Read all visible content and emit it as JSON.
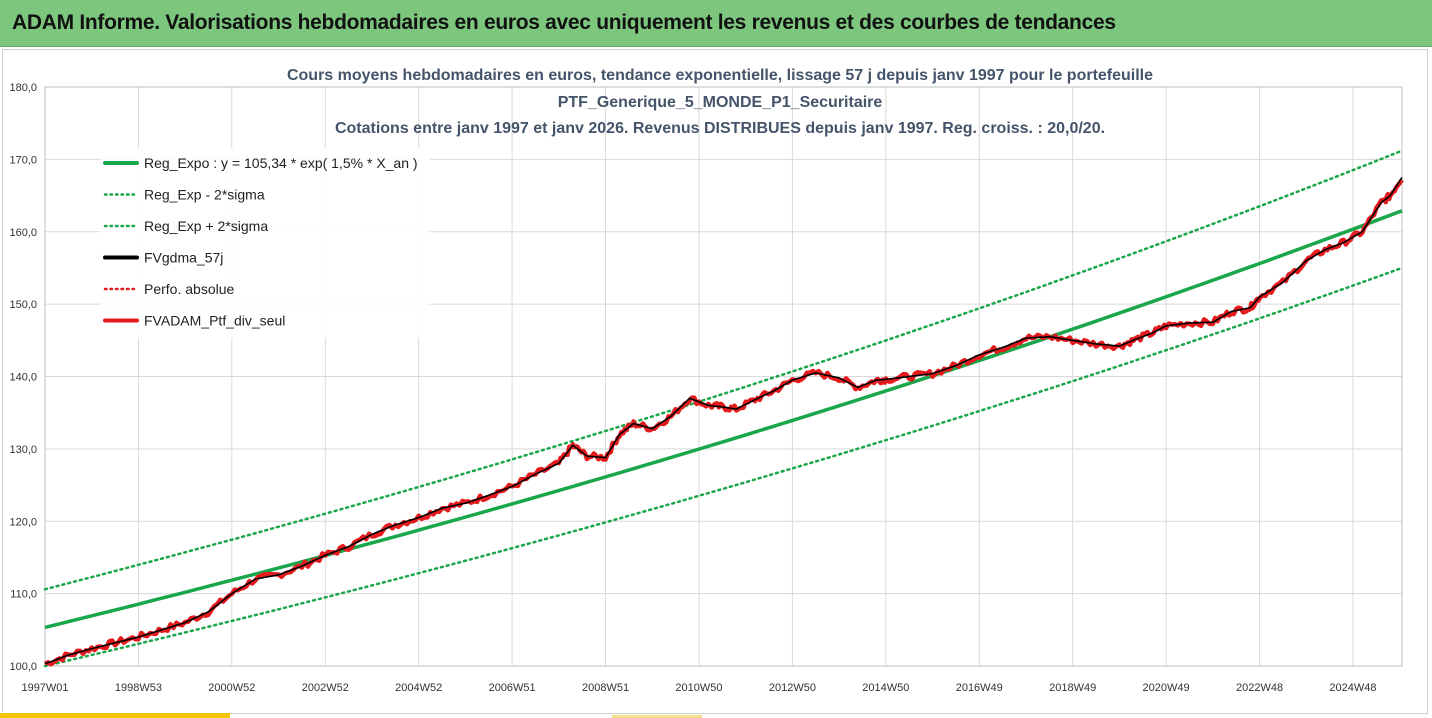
{
  "header": {
    "title": "ADAM Informe. Valorisations hebdomadaires en euros avec uniquement les revenus et des courbes de tendances"
  },
  "colors": {
    "header_bg": "#7dc67e",
    "trend": "#1aa64a",
    "price": "#e41a1c",
    "smooth": "#000000"
  },
  "chart_data": {
    "type": "line",
    "title_lines": [
      "Cours moyens hebdomadaires  en euros, tendance exponentielle, lissage 57 j depuis janv 1997 pour le portefeuille",
      "PTF_Generique_5_MONDE_P1_Securitaire",
      "Cotations entre janv 1997 et janv 2026. Revenus DISTRIBUES depuis janv 1997. Reg. croiss. : 20,0/20."
    ],
    "ylim": [
      100,
      180
    ],
    "y_ticks": [
      "100,0",
      "110,0",
      "120,0",
      "130,0",
      "140,0",
      "150,0",
      "160,0",
      "170,0",
      "180,0"
    ],
    "x_range": [
      1997.0,
      2026.05
    ],
    "x_ticks": [
      {
        "label": "1997W01",
        "x": 1997.0
      },
      {
        "label": "1998W53",
        "x": 1999.0
      },
      {
        "label": "2000W52",
        "x": 2001.0
      },
      {
        "label": "2002W52",
        "x": 2003.0
      },
      {
        "label": "2004W52",
        "x": 2005.0
      },
      {
        "label": "2006W51",
        "x": 2007.0
      },
      {
        "label": "2008W51",
        "x": 2009.0
      },
      {
        "label": "2010W50",
        "x": 2011.0
      },
      {
        "label": "2012W50",
        "x": 2013.0
      },
      {
        "label": "2014W50",
        "x": 2015.0
      },
      {
        "label": "2016W49",
        "x": 2017.0
      },
      {
        "label": "2018W49",
        "x": 2019.0
      },
      {
        "label": "2020W49",
        "x": 2021.0
      },
      {
        "label": "2022W48",
        "x": 2023.0
      },
      {
        "label": "2024W48",
        "x": 2025.0
      }
    ],
    "legend": [
      {
        "label": "Reg_Expo : y = 105,34 * exp( 1,5% *  X_an )",
        "color": "#1aa64a",
        "style": "solid"
      },
      {
        "label": "Reg_Exp - 2*sigma",
        "color": "#1aa64a",
        "style": "dotted"
      },
      {
        "label": "Reg_Exp + 2*sigma",
        "color": "#1aa64a",
        "style": "dotted"
      },
      {
        "label": "FVgdma_57j",
        "color": "#000000",
        "style": "solid"
      },
      {
        "label": "Perfo. absolue",
        "color": "#e41a1c",
        "style": "dotted"
      },
      {
        "label": "FVADAM_Ptf_div_seul",
        "color": "#e41a1c",
        "style": "solid"
      }
    ],
    "series": [
      {
        "name": "Reg_Expo",
        "x": [
          1997.0,
          2026.05
        ],
        "y": [
          105.34,
          162.9
        ]
      },
      {
        "name": "Reg_Exp - 2*sigma",
        "x": [
          1997.0,
          2026.05
        ],
        "y": [
          100.0,
          155.0
        ]
      },
      {
        "name": "Reg_Exp + 2*sigma",
        "x": [
          1997.0,
          2026.05
        ],
        "y": [
          110.6,
          171.2
        ]
      },
      {
        "name": "FVADAM_Ptf_div_seul",
        "x": [
          1997.0,
          1997.5,
          1998.0,
          1998.5,
          1999.0,
          1999.5,
          2000.0,
          2000.5,
          2001.0,
          2001.5,
          2002.0,
          2002.5,
          2003.0,
          2003.5,
          2004.0,
          2004.5,
          2005.0,
          2005.5,
          2006.0,
          2006.5,
          2007.0,
          2007.5,
          2008.0,
          2008.3,
          2008.6,
          2009.0,
          2009.3,
          2009.6,
          2010.0,
          2010.4,
          2010.8,
          2011.2,
          2011.5,
          2011.8,
          2012.2,
          2012.6,
          2013.0,
          2013.5,
          2014.0,
          2014.4,
          2014.8,
          2015.0,
          2015.5,
          2016.0,
          2016.5,
          2017.0,
          2017.5,
          2018.0,
          2018.5,
          2019.0,
          2019.5,
          2020.0,
          2020.3,
          2020.7,
          2021.0,
          2021.5,
          2022.0,
          2022.4,
          2022.8,
          2023.0,
          2023.5,
          2024.0,
          2024.4,
          2024.8,
          2025.2,
          2025.6,
          2025.8,
          2026.05
        ],
        "y": [
          100.3,
          101.5,
          102.4,
          103.2,
          104.0,
          105.0,
          106.0,
          107.5,
          110.0,
          112.0,
          112.6,
          113.8,
          115.3,
          116.5,
          118.2,
          119.5,
          120.5,
          121.8,
          122.5,
          123.6,
          124.8,
          126.5,
          128.0,
          130.5,
          129.0,
          128.8,
          132.0,
          133.5,
          132.8,
          134.5,
          137.0,
          136.0,
          135.8,
          135.5,
          136.8,
          138.0,
          139.5,
          140.5,
          139.8,
          138.5,
          139.5,
          139.6,
          140.0,
          140.4,
          141.5,
          143.0,
          144.0,
          145.3,
          145.5,
          145.0,
          144.5,
          144.2,
          145.0,
          146.0,
          147.0,
          147.4,
          147.5,
          149.0,
          149.5,
          151.0,
          153.0,
          156.0,
          157.5,
          158.5,
          160.0,
          164.0,
          165.0,
          167.5
        ]
      }
    ]
  }
}
